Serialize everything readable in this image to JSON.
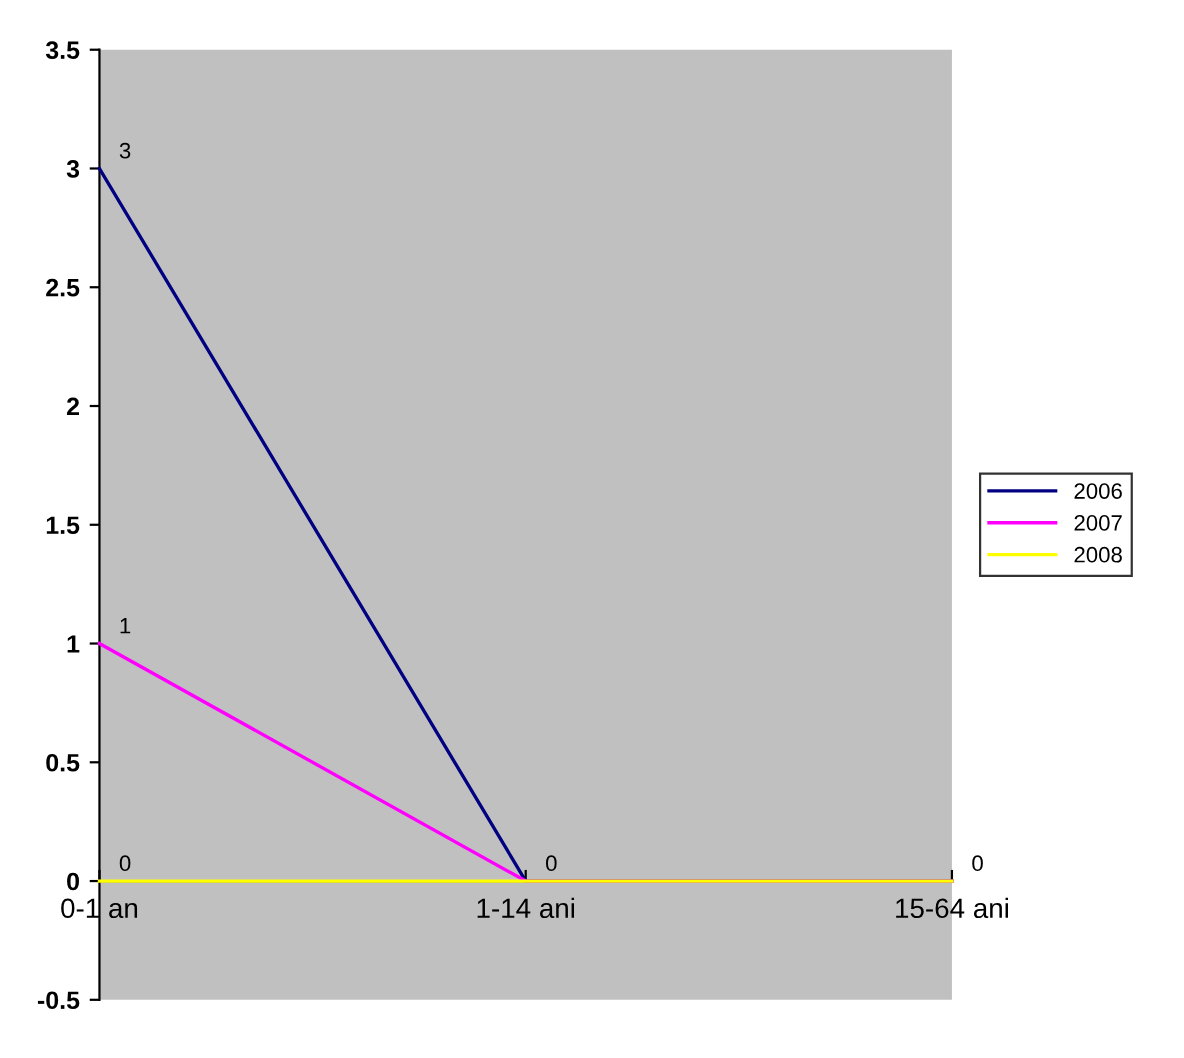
{
  "chart_data": {
    "type": "line",
    "categories": [
      "0-1 an",
      "1-14 ani",
      "15-64 ani"
    ],
    "series": [
      {
        "name": "2006",
        "color": "#000080",
        "values": [
          3,
          0,
          0
        ],
        "value_labels": [
          "3",
          "0",
          "0"
        ]
      },
      {
        "name": "2007",
        "color": "#ff00ff",
        "values": [
          1,
          0,
          0
        ],
        "value_labels": [
          "1",
          null,
          null
        ]
      },
      {
        "name": "2008",
        "color": "#ffff00",
        "values": [
          0,
          0,
          0
        ],
        "value_labels": [
          "0",
          null,
          null
        ]
      }
    ],
    "ylim": [
      -0.5,
      3.5
    ],
    "yticks": [
      -0.5,
      0,
      0.5,
      1,
      1.5,
      2,
      2.5,
      3,
      3.5
    ],
    "grid": false,
    "legend": "right",
    "marker": "none",
    "line_style": "solid"
  }
}
